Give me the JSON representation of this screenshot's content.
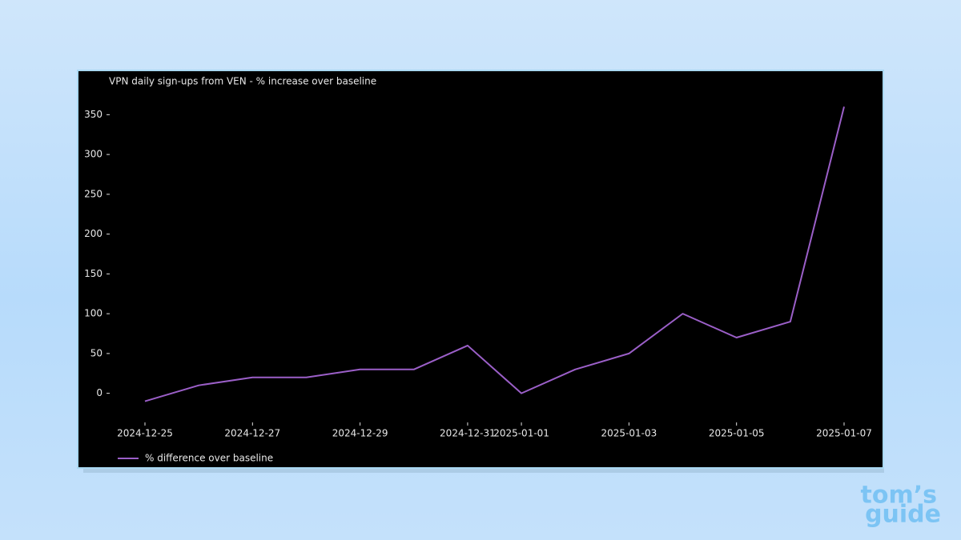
{
  "chart_data": {
    "type": "line",
    "title": "VPN daily sign-ups from VEN - % increase over baseline",
    "x": [
      "2024-12-25",
      "2024-12-26",
      "2024-12-27",
      "2024-12-28",
      "2024-12-29",
      "2024-12-30",
      "2024-12-31",
      "2025-01-01",
      "2025-01-02",
      "2025-01-03",
      "2025-01-04",
      "2025-01-05",
      "2025-01-06",
      "2025-01-07"
    ],
    "series": [
      {
        "name": "% difference over baseline",
        "color": "#9b5fc8",
        "values": [
          -10,
          10,
          20,
          20,
          30,
          30,
          60,
          0,
          30,
          50,
          100,
          70,
          90,
          360
        ]
      }
    ],
    "xticks": [
      "2024-12-25",
      "2024-12-27",
      "2024-12-29",
      "2024-12-31",
      "2025-01-01",
      "2025-01-03",
      "2025-01-05",
      "2025-01-07"
    ],
    "ylim": [
      -28.5,
      378.5
    ],
    "yticks": [
      0,
      50,
      100,
      150,
      200,
      250,
      300,
      350
    ],
    "grid": false,
    "legend": "lower left"
  },
  "logo": {
    "line1": "tom’s",
    "line2": "guide"
  }
}
